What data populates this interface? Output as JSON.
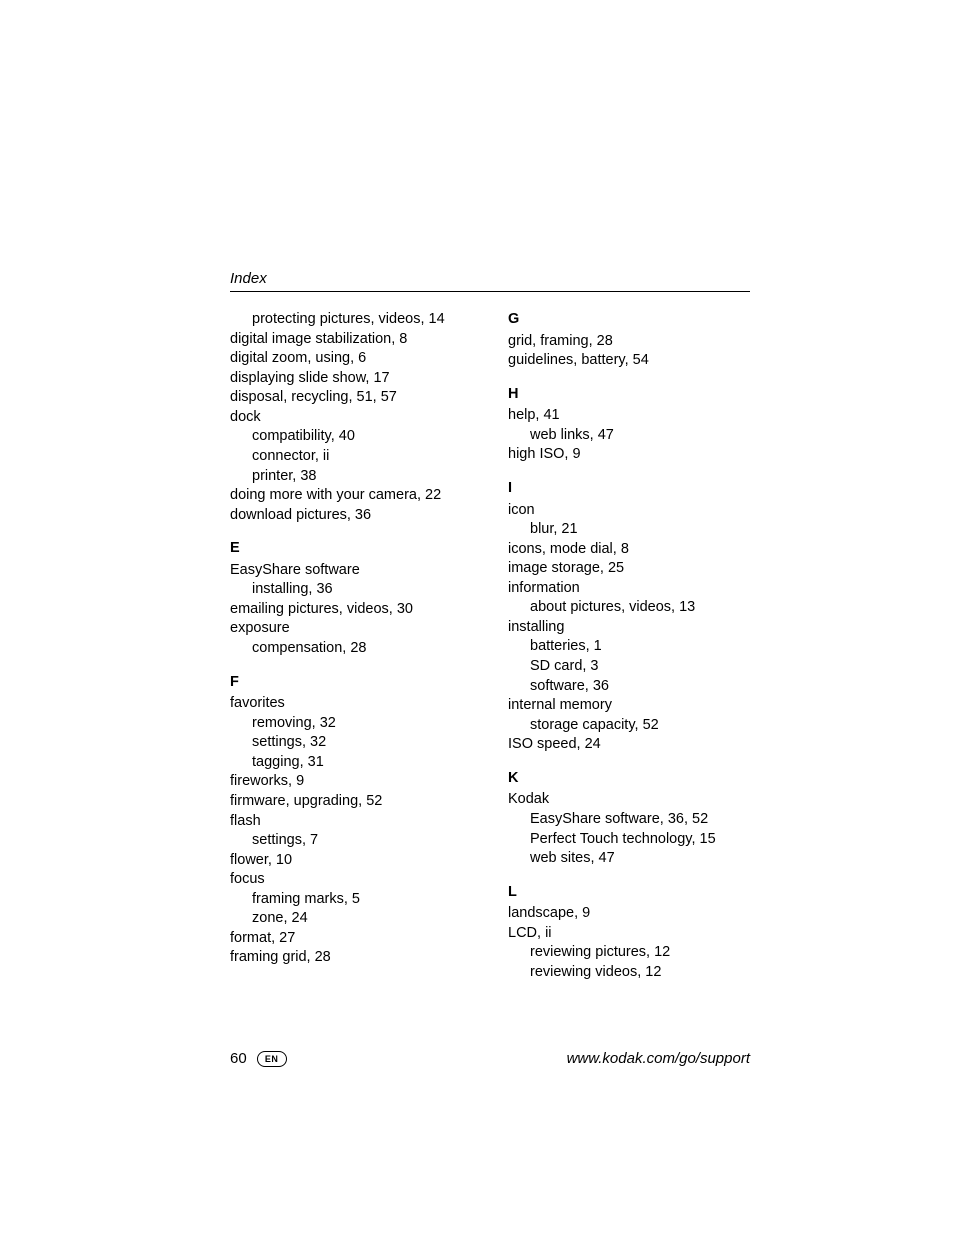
{
  "header": "Index",
  "footer": {
    "page_number": "60",
    "lang": "EN",
    "url": "www.kodak.com/go/support"
  },
  "left_column": [
    {
      "text": "protecting pictures, videos, 14",
      "indent": 1
    },
    {
      "text": "digital image stabilization, 8",
      "indent": 0
    },
    {
      "text": "digital zoom, using, 6",
      "indent": 0
    },
    {
      "text": "displaying slide show, 17",
      "indent": 0
    },
    {
      "text": "disposal, recycling, 51, 57",
      "indent": 0
    },
    {
      "text": "dock",
      "indent": 0
    },
    {
      "text": "compatibility, 40",
      "indent": 1
    },
    {
      "text": "connector, ii",
      "indent": 1
    },
    {
      "text": "printer, 38",
      "indent": 1
    },
    {
      "text": "doing more with your camera, 22",
      "indent": 0
    },
    {
      "text": "download pictures, 36",
      "indent": 0
    },
    {
      "text": "E",
      "letter": true
    },
    {
      "text": "EasyShare software",
      "indent": 0
    },
    {
      "text": "installing, 36",
      "indent": 1
    },
    {
      "text": "emailing pictures, videos, 30",
      "indent": 0
    },
    {
      "text": "exposure",
      "indent": 0
    },
    {
      "text": "compensation, 28",
      "indent": 1
    },
    {
      "text": "F",
      "letter": true
    },
    {
      "text": "favorites",
      "indent": 0
    },
    {
      "text": "removing, 32",
      "indent": 1
    },
    {
      "text": "settings, 32",
      "indent": 1
    },
    {
      "text": "tagging, 31",
      "indent": 1
    },
    {
      "text": "fireworks, 9",
      "indent": 0
    },
    {
      "text": "firmware, upgrading, 52",
      "indent": 0
    },
    {
      "text": "flash",
      "indent": 0
    },
    {
      "text": "settings, 7",
      "indent": 1
    },
    {
      "text": "flower, 10",
      "indent": 0
    },
    {
      "text": "focus",
      "indent": 0
    },
    {
      "text": "framing marks, 5",
      "indent": 1
    },
    {
      "text": "zone, 24",
      "indent": 1
    },
    {
      "text": "format, 27",
      "indent": 0
    },
    {
      "text": "framing grid, 28",
      "indent": 0
    }
  ],
  "right_column": [
    {
      "text": "G",
      "letter": true,
      "first": true
    },
    {
      "text": "grid, framing, 28",
      "indent": 0
    },
    {
      "text": "guidelines, battery, 54",
      "indent": 0
    },
    {
      "text": "H",
      "letter": true
    },
    {
      "text": "help, 41",
      "indent": 0
    },
    {
      "text": "web links, 47",
      "indent": 1
    },
    {
      "text": "high ISO, 9",
      "indent": 0
    },
    {
      "text": "I",
      "letter": true
    },
    {
      "text": "icon",
      "indent": 0
    },
    {
      "text": "blur, 21",
      "indent": 1
    },
    {
      "text": "icons, mode dial, 8",
      "indent": 0
    },
    {
      "text": "image storage, 25",
      "indent": 0
    },
    {
      "text": "information",
      "indent": 0
    },
    {
      "text": "about pictures, videos, 13",
      "indent": 1
    },
    {
      "text": "installing",
      "indent": 0
    },
    {
      "text": "batteries, 1",
      "indent": 1
    },
    {
      "text": "SD card, 3",
      "indent": 1
    },
    {
      "text": "software, 36",
      "indent": 1
    },
    {
      "text": "internal memory",
      "indent": 0
    },
    {
      "text": "storage capacity, 52",
      "indent": 1
    },
    {
      "text": "ISO speed, 24",
      "indent": 0
    },
    {
      "text": "K",
      "letter": true
    },
    {
      "text": "Kodak",
      "indent": 0
    },
    {
      "text": "EasyShare software, 36, 52",
      "indent": 1
    },
    {
      "text": "Perfect Touch technology, 15",
      "indent": 1
    },
    {
      "text": "web sites, 47",
      "indent": 1
    },
    {
      "text": "L",
      "letter": true
    },
    {
      "text": "landscape, 9",
      "indent": 0
    },
    {
      "text": "LCD, ii",
      "indent": 0
    },
    {
      "text": "reviewing pictures, 12",
      "indent": 1
    },
    {
      "text": "reviewing videos, 12",
      "indent": 1
    }
  ]
}
